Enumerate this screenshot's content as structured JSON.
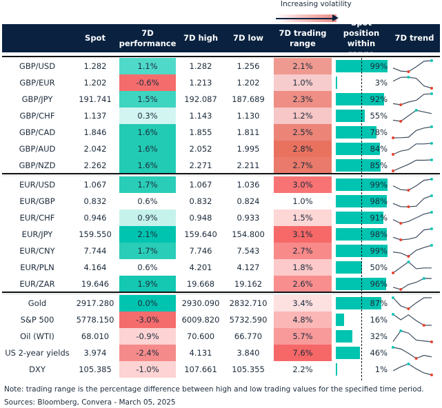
{
  "legend": {
    "label": "Increasing volatility"
  },
  "colors": {
    "header_bg": "#0a2240",
    "bar": "#00c4b0",
    "min_marker": "#e8412f",
    "max_marker": "#10c7b5",
    "line": "#3a4a5c"
  },
  "headers": {
    "spot": "Spot",
    "performance": "7D performance",
    "high": "7D high",
    "low": "7D low",
    "range": "7D trading range",
    "position": "Spot position within range",
    "trend": "7D trend"
  },
  "sections": [
    {
      "rows": [
        {
          "name": "GBP/USD",
          "spot": "1.282",
          "perf": "1.1%",
          "perf_color": "#4fd9c9",
          "high": "1.282",
          "low": "1.256",
          "range": "2.1%",
          "range_color": "#ef9a91",
          "position": 99,
          "trend": [
            3,
            0.5,
            0,
            4,
            8.5,
            9
          ]
        },
        {
          "name": "GBP/EUR",
          "spot": "1.202",
          "perf": "-0.6%",
          "perf_color": "#f46c6c",
          "high": "1.213",
          "low": "1.202",
          "range": "1.0%",
          "range_color": "#f7cccc",
          "position": 3,
          "trend": [
            6,
            9.4,
            9.5,
            8.5,
            2,
            0
          ]
        },
        {
          "name": "GBP/JPY",
          "spot": "191.741",
          "perf": "1.5%",
          "perf_color": "#3dd4c0",
          "high": "192.087",
          "low": "187.689",
          "range": "2.3%",
          "range_color": "#ee8e84",
          "position": 92,
          "trend": [
            1,
            0,
            2.5,
            4,
            9.5,
            10
          ]
        },
        {
          "name": "GBP/CHF",
          "spot": "1.137",
          "perf": "0.3%",
          "perf_color": "#d2f5f1",
          "high": "1.143",
          "low": "1.130",
          "range": "1.2%",
          "range_color": "#f7c6c6",
          "position": 55,
          "trend": [
            1,
            0,
            5,
            10,
            8.5,
            7
          ]
        },
        {
          "name": "GBP/CAD",
          "spot": "1.846",
          "perf": "1.6%",
          "perf_color": "#22cbb4",
          "high": "1.855",
          "low": "1.811",
          "range": "2.5%",
          "range_color": "#ec8478",
          "position": 78,
          "trend": [
            0,
            0.1,
            0.5,
            6,
            8,
            9
          ]
        },
        {
          "name": "GBP/AUD",
          "spot": "2.042",
          "perf": "1.6%",
          "perf_color": "#22cbb4",
          "high": "2.052",
          "low": "1.995",
          "range": "2.8%",
          "range_color": "#e9725f",
          "position": 84,
          "trend": [
            0,
            3,
            4.3,
            9.5,
            9.5,
            10
          ]
        },
        {
          "name": "GBP/NZD",
          "spot": "2.262",
          "perf": "1.6%",
          "perf_color": "#22cbb4",
          "high": "2.271",
          "low": "2.211",
          "range": "2.7%",
          "range_color": "#ea7a6b",
          "position": 85,
          "trend": [
            0,
            3,
            6,
            9.7,
            9.7,
            10
          ]
        }
      ]
    },
    {
      "rows": [
        {
          "name": "EUR/USD",
          "spot": "1.067",
          "perf": "1.7%",
          "perf_color": "#2acdb7",
          "high": "1.067",
          "low": "1.036",
          "range": "3.0%",
          "range_color": "#f87373",
          "position": 99,
          "trend": [
            4,
            0.5,
            0,
            4,
            9,
            10
          ]
        },
        {
          "name": "EUR/GBP",
          "spot": "0.832",
          "perf": "0.6%",
          "perf_color": "#ffffff",
          "high": "0.832",
          "low": "0.824",
          "range": "1.0%",
          "range_color": "#ffffff",
          "position": 98,
          "trend": [
            3,
            0.1,
            0,
            0.5,
            7.5,
            10
          ]
        },
        {
          "name": "EUR/CHF",
          "spot": "0.946",
          "perf": "0.9%",
          "perf_color": "#c6f2ec",
          "high": "0.948",
          "low": "0.933",
          "range": "1.5%",
          "range_color": "#fdd6d6",
          "position": 91,
          "trend": [
            3.3,
            0,
            1.7,
            5,
            8.3,
            10
          ]
        },
        {
          "name": "EUR/JPY",
          "spot": "159.550",
          "perf": "2.1%",
          "perf_color": "#00c4b0",
          "high": "159.640",
          "low": "154.800",
          "range": "3.1%",
          "range_color": "#f76868",
          "position": 98,
          "trend": [
            2.3,
            0,
            0.6,
            2.3,
            9,
            10
          ]
        },
        {
          "name": "EUR/CNY",
          "spot": "7.744",
          "perf": "1.7%",
          "perf_color": "#2acdb7",
          "high": "7.746",
          "low": "7.543",
          "range": "2.7%",
          "range_color": "#f88a8a",
          "position": 99,
          "trend": [
            4,
            3,
            0,
            5.5,
            8,
            10
          ]
        },
        {
          "name": "EUR/PLN",
          "spot": "4.164",
          "perf": "0.6%",
          "perf_color": "#ffffff",
          "high": "4.201",
          "low": "4.127",
          "range": "1.8%",
          "range_color": "#fccaca",
          "position": 50,
          "trend": [
            0,
            5,
            10,
            3.8,
            4.5,
            4.5
          ]
        },
        {
          "name": "EUR/ZAR",
          "spot": "19.646",
          "perf": "1.9%",
          "perf_color": "#14c8b2",
          "high": "19.668",
          "low": "19.162",
          "range": "2.6%",
          "range_color": "#f98e8e",
          "position": 96,
          "trend": [
            2,
            0,
            4.5,
            6.5,
            10,
            9.9
          ]
        }
      ]
    },
    {
      "rows": [
        {
          "name": "Gold",
          "spot": "2917.280",
          "perf": "0.0%",
          "perf_color": "#00c4b0",
          "high": "2930.090",
          "low": "2832.710",
          "range": "3.4%",
          "range_color": "#fde0e0",
          "position": 87,
          "trend": [
            10,
            2.6,
            0,
            5.3,
            10,
            10
          ]
        },
        {
          "name": "S&P 500",
          "spot": "5778.150",
          "perf": "-3.0%",
          "perf_color": "#f46c6c",
          "high": "6009.820",
          "low": "5732.590",
          "range": "4.8%",
          "range_color": "#fbb6b6",
          "position": 16,
          "trend": [
            10,
            5,
            9.5,
            4.2,
            0,
            0
          ]
        },
        {
          "name": "Oil (WTI)",
          "spot": "68.010",
          "perf": "-0.9%",
          "perf_color": "#fdd3d3",
          "high": "70.600",
          "low": "66.770",
          "range": "5.7%",
          "range_color": "#f99a9a",
          "position": 32,
          "trend": [
            0.2,
            10,
            7.9,
            1.6,
            0.8,
            0
          ]
        },
        {
          "name": "US 2-year yields",
          "spot": "3.974",
          "perf": "-2.4%",
          "perf_color": "#f58a8a",
          "high": "4.131",
          "low": "3.840",
          "range": "7.6%",
          "range_color": "#f66868",
          "position": 46,
          "trend": [
            10,
            8.6,
            4.6,
            0,
            2.7,
            1.4
          ]
        },
        {
          "name": "DXY",
          "spot": "105.385",
          "perf": "-1.0%",
          "perf_color": "#fdd3d3",
          "high": "107.661",
          "low": "105.355",
          "range": "2.2%",
          "range_color": "#ffffff",
          "position": 1,
          "trend": [
            3.8,
            7.4,
            10,
            5.5,
            1.8,
            0
          ]
        }
      ]
    }
  ],
  "footer": {
    "note": "Note: trading range is the percentage difference between high and low trading values for the specified time period.",
    "sources": "Sources: Bloomberg, Convera - March 05, 2025"
  }
}
